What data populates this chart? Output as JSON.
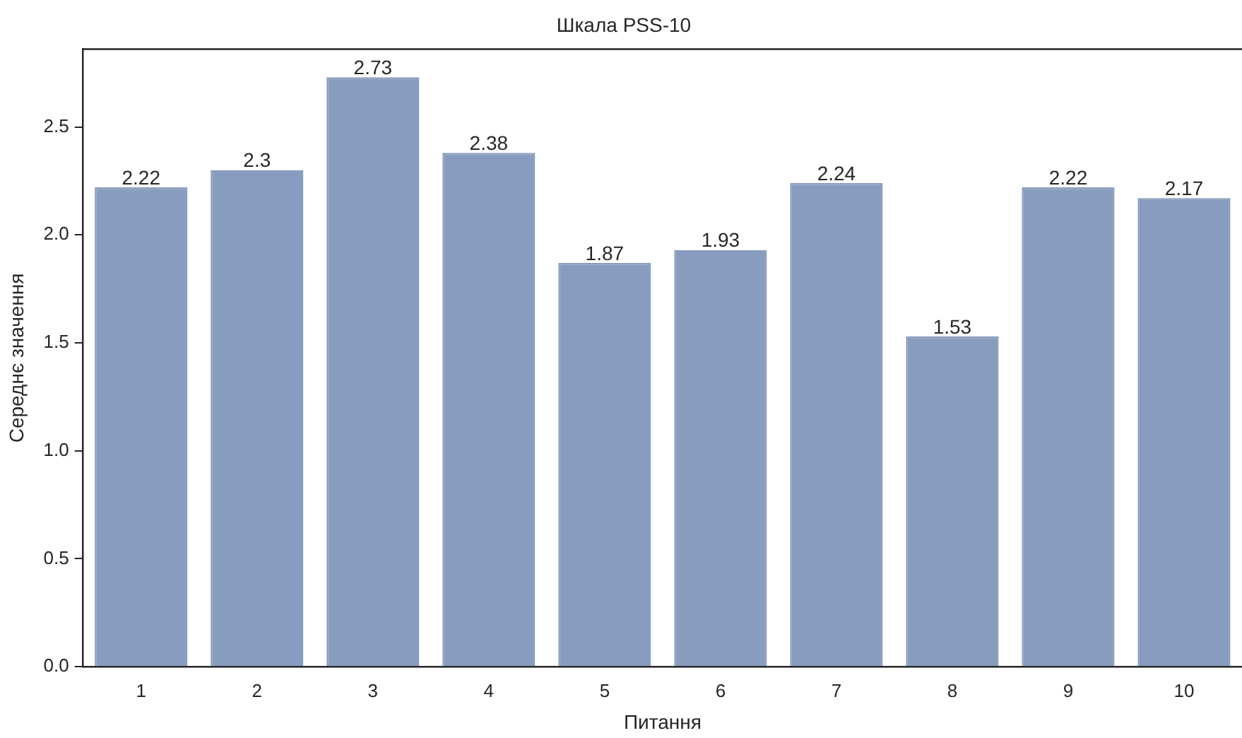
{
  "chart_data": {
    "type": "bar",
    "title": "Шкала PSS-10",
    "xlabel": "Питання",
    "ylabel": "Середнє значення",
    "categories": [
      "1",
      "2",
      "3",
      "4",
      "5",
      "6",
      "7",
      "8",
      "9",
      "10"
    ],
    "values": [
      2.22,
      2.3,
      2.73,
      2.38,
      1.87,
      1.93,
      2.24,
      1.53,
      2.22,
      2.17
    ],
    "color": "#889cbf",
    "data_labels": true,
    "grid": false,
    "legend": false,
    "ylim": [
      0,
      2.86
    ],
    "yticks": [
      {
        "value": 0,
        "label": "0.0"
      },
      {
        "value": 0.5,
        "label": "0.5"
      },
      {
        "value": 1,
        "label": "1.0"
      },
      {
        "value": 1.5,
        "label": "1.5"
      },
      {
        "value": 2,
        "label": "2.0"
      },
      {
        "value": 2.5,
        "label": "2.5"
      }
    ]
  }
}
